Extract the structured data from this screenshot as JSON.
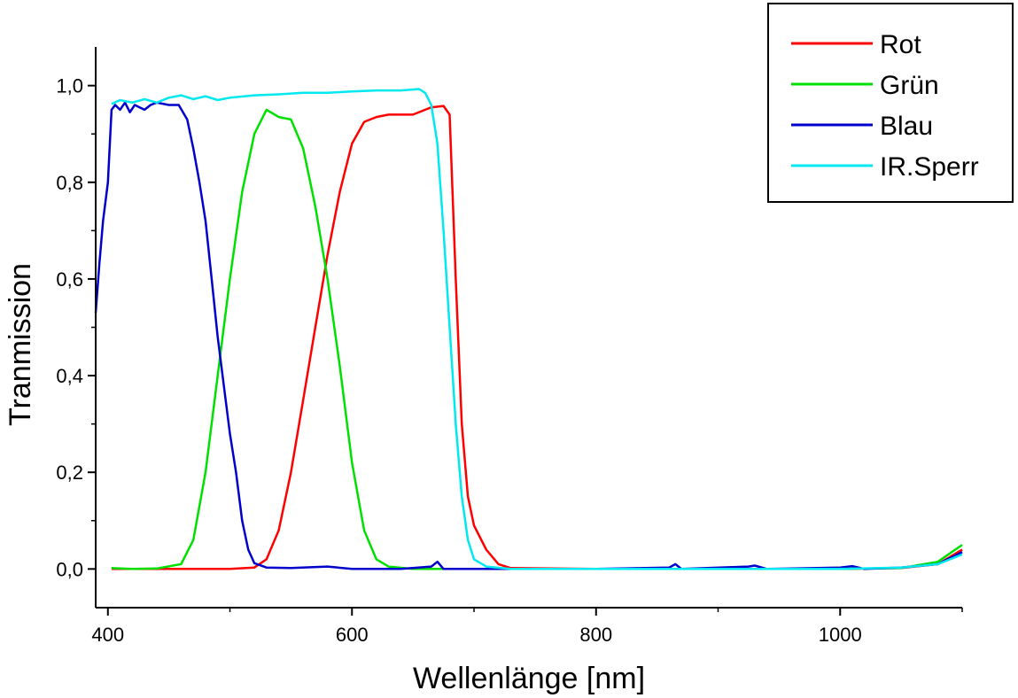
{
  "chart_data": {
    "type": "line",
    "title": "",
    "xlabel": "Wellenlänge [nm]",
    "ylabel": "Tranmission",
    "xlim": [
      390,
      1100
    ],
    "ylim": [
      -0.08,
      1.08
    ],
    "grid": false,
    "legend_position": "top-right",
    "x_ticks": [
      {
        "value": 400,
        "label": "400"
      },
      {
        "value": 600,
        "label": "600"
      },
      {
        "value": 800,
        "label": "800"
      },
      {
        "value": 1000,
        "label": "1000"
      }
    ],
    "y_ticks": [
      {
        "value": 0.0,
        "label": "0,0"
      },
      {
        "value": 0.2,
        "label": "0,2"
      },
      {
        "value": 0.4,
        "label": "0,4"
      },
      {
        "value": 0.6,
        "label": "0,6"
      },
      {
        "value": 0.8,
        "label": "0,8"
      },
      {
        "value": 1.0,
        "label": "1,0"
      }
    ],
    "series": [
      {
        "name": "Rot",
        "color": "#ff0000",
        "points": [
          [
            403,
            0.0
          ],
          [
            450,
            0.0
          ],
          [
            500,
            0.0
          ],
          [
            520,
            0.003
          ],
          [
            530,
            0.02
          ],
          [
            540,
            0.08
          ],
          [
            550,
            0.2
          ],
          [
            560,
            0.35
          ],
          [
            570,
            0.5
          ],
          [
            580,
            0.65
          ],
          [
            590,
            0.78
          ],
          [
            600,
            0.88
          ],
          [
            610,
            0.925
          ],
          [
            620,
            0.935
          ],
          [
            630,
            0.94
          ],
          [
            640,
            0.94
          ],
          [
            650,
            0.94
          ],
          [
            660,
            0.95
          ],
          [
            665,
            0.955
          ],
          [
            675,
            0.958
          ],
          [
            680,
            0.94
          ],
          [
            685,
            0.6
          ],
          [
            690,
            0.3
          ],
          [
            695,
            0.15
          ],
          [
            700,
            0.09
          ],
          [
            710,
            0.04
          ],
          [
            720,
            0.01
          ],
          [
            730,
            0.002
          ],
          [
            800,
            0.0
          ],
          [
            900,
            0.0
          ],
          [
            1000,
            0.0
          ],
          [
            1050,
            0.002
          ],
          [
            1080,
            0.01
          ],
          [
            1100,
            0.04
          ]
        ]
      },
      {
        "name": "Grün",
        "color": "#00e000",
        "points": [
          [
            403,
            0.002
          ],
          [
            420,
            0.0
          ],
          [
            440,
            0.001
          ],
          [
            460,
            0.01
          ],
          [
            470,
            0.06
          ],
          [
            480,
            0.2
          ],
          [
            490,
            0.4
          ],
          [
            500,
            0.6
          ],
          [
            510,
            0.78
          ],
          [
            520,
            0.9
          ],
          [
            530,
            0.95
          ],
          [
            540,
            0.935
          ],
          [
            550,
            0.93
          ],
          [
            560,
            0.87
          ],
          [
            570,
            0.75
          ],
          [
            580,
            0.6
          ],
          [
            590,
            0.42
          ],
          [
            600,
            0.22
          ],
          [
            610,
            0.08
          ],
          [
            620,
            0.02
          ],
          [
            630,
            0.005
          ],
          [
            650,
            0.0
          ],
          [
            700,
            0.0
          ],
          [
            800,
            0.0
          ],
          [
            900,
            0.0
          ],
          [
            1000,
            0.0
          ],
          [
            1050,
            0.002
          ],
          [
            1080,
            0.015
          ],
          [
            1100,
            0.05
          ]
        ]
      },
      {
        "name": "Blau",
        "color": "#0000cc",
        "points": [
          [
            390,
            0.53
          ],
          [
            393,
            0.63
          ],
          [
            396,
            0.72
          ],
          [
            400,
            0.8
          ],
          [
            403,
            0.95
          ],
          [
            406,
            0.96
          ],
          [
            410,
            0.95
          ],
          [
            414,
            0.965
          ],
          [
            418,
            0.945
          ],
          [
            422,
            0.96
          ],
          [
            426,
            0.955
          ],
          [
            430,
            0.95
          ],
          [
            435,
            0.96
          ],
          [
            440,
            0.965
          ],
          [
            450,
            0.96
          ],
          [
            458,
            0.96
          ],
          [
            465,
            0.93
          ],
          [
            470,
            0.87
          ],
          [
            475,
            0.8
          ],
          [
            480,
            0.72
          ],
          [
            485,
            0.6
          ],
          [
            490,
            0.48
          ],
          [
            495,
            0.38
          ],
          [
            500,
            0.28
          ],
          [
            505,
            0.2
          ],
          [
            510,
            0.1
          ],
          [
            515,
            0.04
          ],
          [
            520,
            0.012
          ],
          [
            530,
            0.003
          ],
          [
            550,
            0.002
          ],
          [
            580,
            0.005
          ],
          [
            600,
            0.0
          ],
          [
            640,
            0.0
          ],
          [
            665,
            0.005
          ],
          [
            670,
            0.015
          ],
          [
            675,
            0.0
          ],
          [
            700,
            0.0
          ],
          [
            800,
            0.0
          ],
          [
            860,
            0.003
          ],
          [
            865,
            0.01
          ],
          [
            870,
            0.0
          ],
          [
            925,
            0.005
          ],
          [
            930,
            0.007
          ],
          [
            940,
            0.0
          ],
          [
            1000,
            0.003
          ],
          [
            1010,
            0.006
          ],
          [
            1020,
            0.0
          ],
          [
            1050,
            0.003
          ],
          [
            1080,
            0.01
          ],
          [
            1100,
            0.035
          ]
        ]
      },
      {
        "name": "IR.Sperr",
        "color": "#00e8f0",
        "points": [
          [
            403,
            0.962
          ],
          [
            410,
            0.97
          ],
          [
            420,
            0.965
          ],
          [
            430,
            0.972
          ],
          [
            440,
            0.965
          ],
          [
            450,
            0.975
          ],
          [
            460,
            0.98
          ],
          [
            470,
            0.972
          ],
          [
            480,
            0.978
          ],
          [
            490,
            0.97
          ],
          [
            500,
            0.975
          ],
          [
            520,
            0.98
          ],
          [
            540,
            0.982
          ],
          [
            560,
            0.985
          ],
          [
            580,
            0.985
          ],
          [
            600,
            0.988
          ],
          [
            620,
            0.99
          ],
          [
            640,
            0.99
          ],
          [
            655,
            0.993
          ],
          [
            660,
            0.985
          ],
          [
            665,
            0.96
          ],
          [
            670,
            0.88
          ],
          [
            675,
            0.7
          ],
          [
            680,
            0.5
          ],
          [
            685,
            0.3
          ],
          [
            690,
            0.15
          ],
          [
            695,
            0.06
          ],
          [
            700,
            0.02
          ],
          [
            710,
            0.005
          ],
          [
            730,
            0.0
          ],
          [
            800,
            0.0
          ],
          [
            900,
            0.0
          ],
          [
            1000,
            0.0
          ],
          [
            1050,
            0.003
          ],
          [
            1080,
            0.01
          ],
          [
            1100,
            0.03
          ]
        ]
      }
    ]
  }
}
